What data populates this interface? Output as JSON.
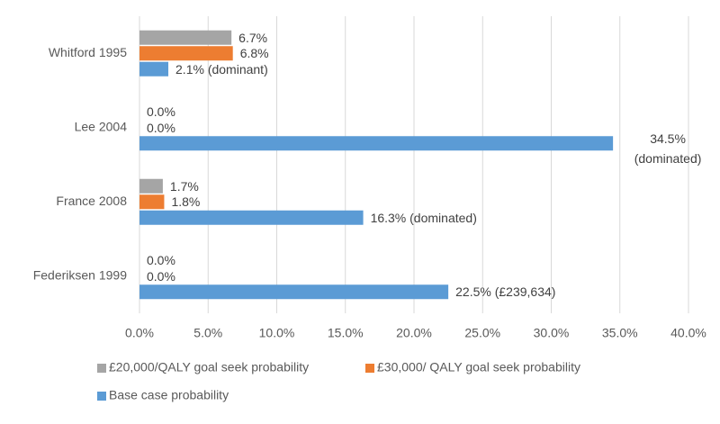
{
  "chart_data": {
    "type": "hbar",
    "categories": [
      "Whitford 1995",
      "Lee 2004",
      "France 2008",
      "Federiksen 1999"
    ],
    "series": [
      {
        "name": "£20,000/QALY goal seek probability",
        "color": "#a5a5a5",
        "values": [
          6.7,
          0.0,
          1.7,
          0.0
        ],
        "value_labels": [
          "6.7%",
          "0.0%",
          "1.7%",
          "0.0%"
        ]
      },
      {
        "name": "£30,000/ QALY goal seek probability",
        "color": "#ed7d31",
        "values": [
          6.8,
          0.0,
          1.8,
          0.0
        ],
        "value_labels": [
          "6.8%",
          "0.0%",
          "1.8%",
          "0.0%"
        ]
      },
      {
        "name": "Base case probability",
        "color": "#5b9bd5",
        "values": [
          2.1,
          34.5,
          16.3,
          22.5
        ],
        "value_labels": [
          "2.1% (dominant)",
          "34.5% (dominated)",
          "16.3% (dominated)",
          "22.5% (£239,634)"
        ]
      }
    ],
    "xlim": [
      0,
      40
    ],
    "xticks": [
      {
        "value": 0,
        "label": "0.0%"
      },
      {
        "value": 5,
        "label": "5.0%"
      },
      {
        "value": 10,
        "label": "10.0%"
      },
      {
        "value": 15,
        "label": "15.0%"
      },
      {
        "value": 20,
        "label": "20.0%"
      },
      {
        "value": 25,
        "label": "25.0%"
      },
      {
        "value": 30,
        "label": "30.0%"
      },
      {
        "value": 35,
        "label": "35.0%"
      },
      {
        "value": 40,
        "label": "40.0%"
      }
    ],
    "grid": true
  }
}
